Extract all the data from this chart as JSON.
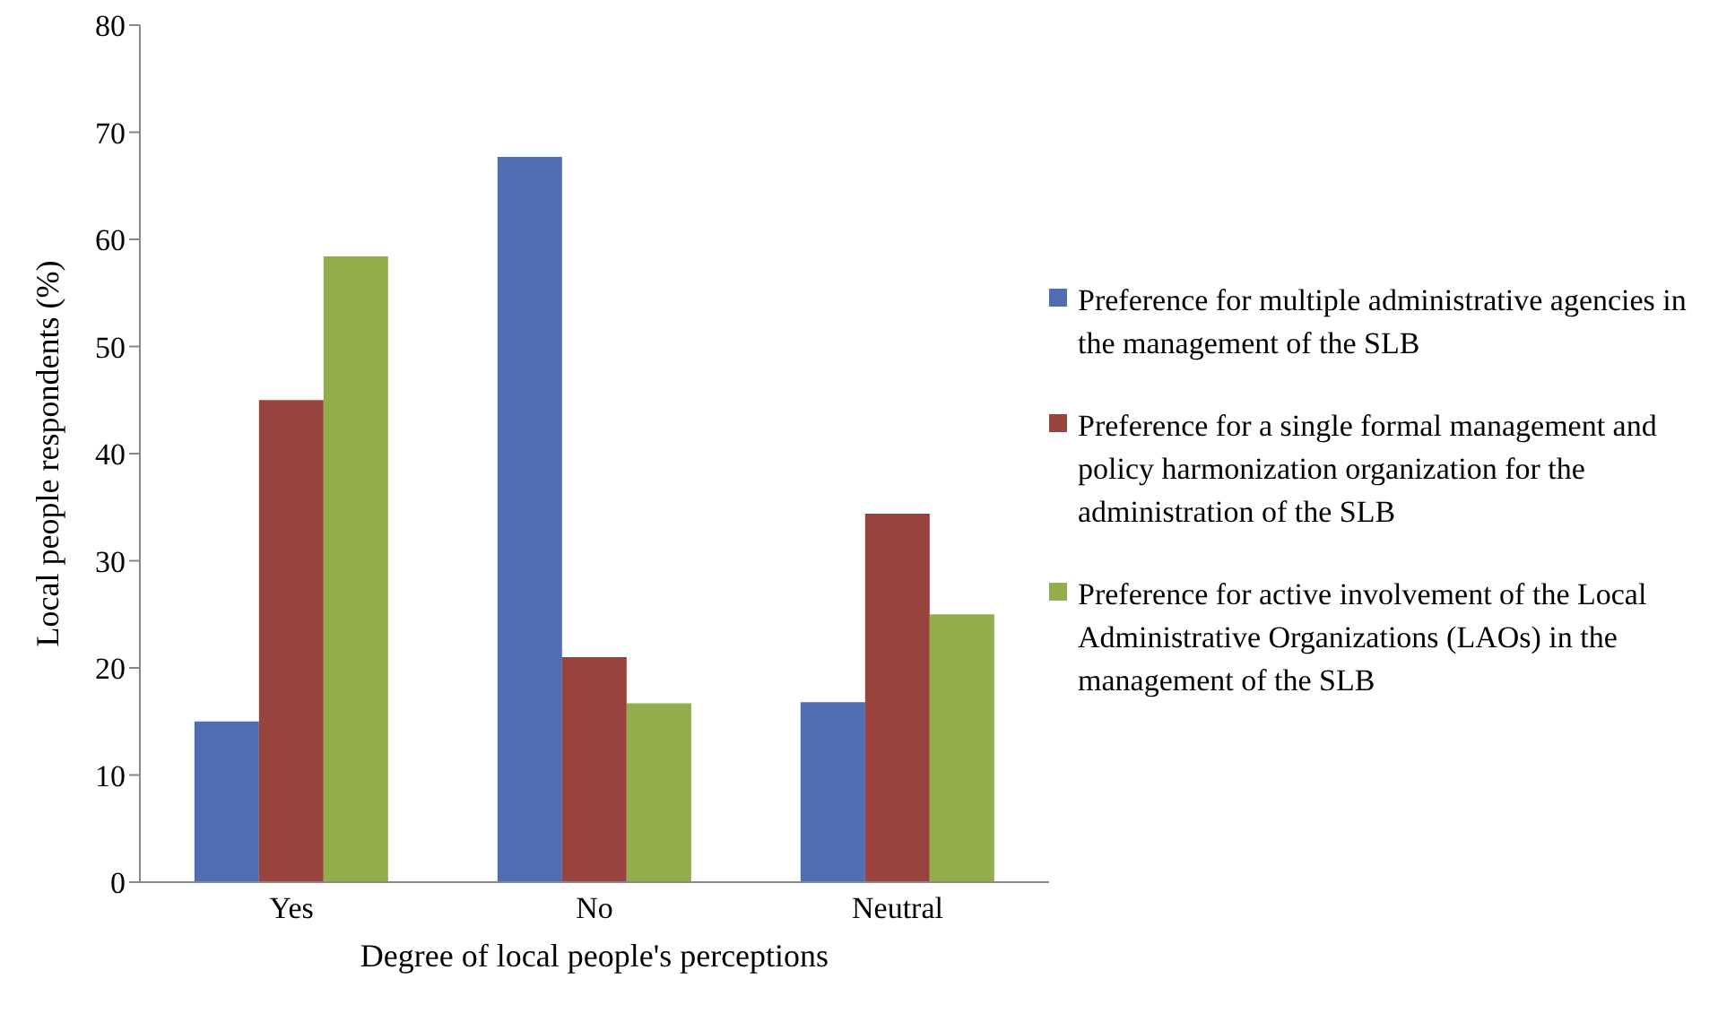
{
  "chart_data": {
    "type": "bar",
    "xlabel": "Degree of local people's perceptions",
    "ylabel": "Local people respondents (%)",
    "categories": [
      "Yes",
      "No",
      "Neutral"
    ],
    "series": [
      {
        "name": "Preference for multiple administrative agencies in the management of the SLB",
        "color": "#4f6db0",
        "values": [
          15,
          67.7,
          16.8
        ]
      },
      {
        "name": "Preference for a single formal management  and policy harmonization organization for the administration of the SLB",
        "color": "#98433d",
        "values": [
          45,
          21,
          34.4
        ]
      },
      {
        "name": "Preference for active involvement of the Local Administrative Organizations (LAOs) in the management of the SLB",
        "color": "#92ad4b",
        "values": [
          58.4,
          16.7,
          25
        ]
      }
    ],
    "ylim": [
      0,
      80
    ],
    "yticks": [
      0,
      10,
      20,
      30,
      40,
      50,
      60,
      70,
      80
    ],
    "grid": false,
    "legend": "right"
  }
}
